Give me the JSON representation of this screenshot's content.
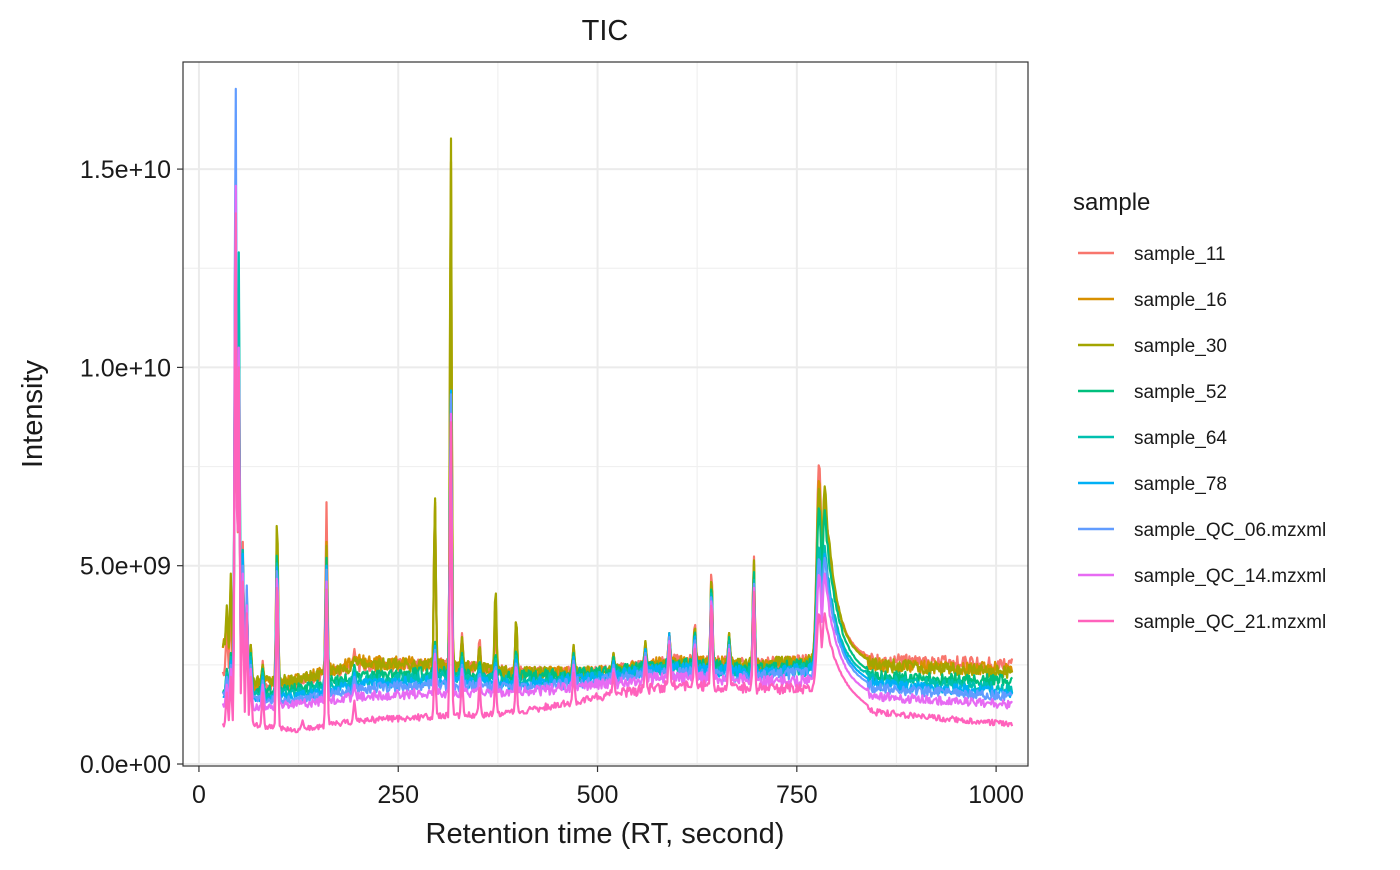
{
  "chart_data": {
    "type": "line",
    "title": "TIC",
    "xlabel": "Retention time (RT, second)",
    "ylabel": "Intensity",
    "xlim": [
      -20,
      1040
    ],
    "ylim": [
      -50000000.0,
      17700000000.0
    ],
    "x_ticks": [
      0,
      250,
      500,
      750,
      1000
    ],
    "x_tick_labels": [
      "0",
      "250",
      "500",
      "750",
      "1000"
    ],
    "y_ticks": [
      0,
      5000000000,
      10000000000,
      15000000000
    ],
    "y_tick_labels": [
      "0.0e+00",
      "5.0e+09",
      "1.0e+10",
      "1.5e+10"
    ],
    "grid": true,
    "legend": {
      "title": "sample",
      "position": "right"
    },
    "x_start": 30,
    "x_end": 1020,
    "peaks_x": [
      35,
      40,
      46,
      50,
      55,
      60,
      65,
      80,
      98,
      130,
      160,
      195,
      296,
      316,
      330,
      352,
      372,
      398,
      470,
      520,
      560,
      590,
      622,
      643,
      665,
      696,
      778,
      785
    ],
    "series": [
      {
        "name": "sample_11",
        "color": "#F8766D",
        "baseline": [
          [
            30,
            2400000000.0
          ],
          [
            60,
            1900000000.0
          ],
          [
            120,
            2000000000.0
          ],
          [
            200,
            2500000000.0
          ],
          [
            300,
            2500000000.0
          ],
          [
            400,
            2300000000.0
          ],
          [
            500,
            2300000000.0
          ],
          [
            600,
            2600000000.0
          ],
          [
            700,
            2500000000.0
          ],
          [
            770,
            2600000000.0
          ],
          [
            800,
            2800000000.0
          ],
          [
            850,
            2600000000.0
          ],
          [
            1020,
            2500000000.0
          ]
        ],
        "peaks": [
          3400000000.0,
          4000000000.0,
          13600000000.0,
          9000000000.0,
          5600000000.0,
          4200000000.0,
          3000000000.0,
          2600000000.0,
          5800000000.0,
          2000000000.0,
          6600000000.0,
          2900000000.0,
          6600000000.0,
          10300000000.0,
          3300000000.0,
          3200000000.0,
          3400000000.0,
          3600000000.0,
          2900000000.0,
          2800000000.0,
          3000000000.0,
          3300000000.0,
          3600000000.0,
          5000000000.0,
          3300000000.0,
          5300000000.0,
          7600000000.0,
          6700000000.0
        ]
      },
      {
        "name": "sample_16",
        "color": "#D89000",
        "baseline": [
          [
            30,
            3000000000.0
          ],
          [
            60,
            2000000000.0
          ],
          [
            120,
            2100000000.0
          ],
          [
            200,
            2600000000.0
          ],
          [
            300,
            2500000000.0
          ],
          [
            400,
            2300000000.0
          ],
          [
            500,
            2300000000.0
          ],
          [
            600,
            2600000000.0
          ],
          [
            700,
            2500000000.0
          ],
          [
            770,
            2600000000.0
          ],
          [
            800,
            2800000000.0
          ],
          [
            850,
            2500000000.0
          ],
          [
            1020,
            2400000000.0
          ]
        ],
        "peaks": [
          3800000000.0,
          4600000000.0,
          13500000000.0,
          9500000000.0,
          5200000000.0,
          4000000000.0,
          3000000000.0,
          2500000000.0,
          6000000000.0,
          2000000000.0,
          5600000000.0,
          2700000000.0,
          6700000000.0,
          15500000000.0,
          3200000000.0,
          3000000000.0,
          4200000000.0,
          3700000000.0,
          3000000000.0,
          2800000000.0,
          3100000000.0,
          3300000000.0,
          3500000000.0,
          4800000000.0,
          3300000000.0,
          5100000000.0,
          7200000000.0,
          6600000000.0
        ]
      },
      {
        "name": "sample_30",
        "color": "#A3A500",
        "baseline": [
          [
            30,
            3000000000.0
          ],
          [
            60,
            2100000000.0
          ],
          [
            120,
            2100000000.0
          ],
          [
            200,
            2500000000.0
          ],
          [
            300,
            2500000000.0
          ],
          [
            400,
            2300000000.0
          ],
          [
            500,
            2300000000.0
          ],
          [
            600,
            2500000000.0
          ],
          [
            700,
            2500000000.0
          ],
          [
            770,
            2600000000.0
          ],
          [
            800,
            2700000000.0
          ],
          [
            850,
            2500000000.0
          ],
          [
            1020,
            2300000000.0
          ]
        ],
        "peaks": [
          4000000000.0,
          4800000000.0,
          13500000000.0,
          9400000000.0,
          5200000000.0,
          4100000000.0,
          3000000000.0,
          2500000000.0,
          6400000000.0,
          2000000000.0,
          5500000000.0,
          2700000000.0,
          6800000000.0,
          16100000000.0,
          3200000000.0,
          3000000000.0,
          4500000000.0,
          3700000000.0,
          3000000000.0,
          2800000000.0,
          3100000000.0,
          3300000000.0,
          3500000000.0,
          4800000000.0,
          3300000000.0,
          5200000000.0,
          7000000000.0,
          7000000000.0
        ]
      },
      {
        "name": "sample_52",
        "color": "#00BF7D",
        "baseline": [
          [
            30,
            1800000000.0
          ],
          [
            60,
            1800000000.0
          ],
          [
            120,
            1900000000.0
          ],
          [
            200,
            2200000000.0
          ],
          [
            300,
            2300000000.0
          ],
          [
            400,
            2200000000.0
          ],
          [
            500,
            2300000000.0
          ],
          [
            600,
            2500000000.0
          ],
          [
            700,
            2400000000.0
          ],
          [
            770,
            2500000000.0
          ],
          [
            800,
            2600000000.0
          ],
          [
            850,
            2200000000.0
          ],
          [
            1020,
            2100000000.0
          ]
        ],
        "peaks": [
          2400000000.0,
          2800000000.0,
          14500000000.0,
          12000000000.0,
          5300000000.0,
          4300000000.0,
          2800000000.0,
          2400000000.0,
          5600000000.0,
          1800000000.0,
          5200000000.0,
          2500000000.0,
          3100000000.0,
          9400000000.0,
          2800000000.0,
          2600000000.0,
          2800000000.0,
          2900000000.0,
          2800000000.0,
          2700000000.0,
          2900000000.0,
          3200000000.0,
          3400000000.0,
          4600000000.0,
          3200000000.0,
          4900000000.0,
          6500000000.0,
          6400000000.0
        ]
      },
      {
        "name": "sample_64",
        "color": "#00C0AF",
        "baseline": [
          [
            30,
            1800000000.0
          ],
          [
            60,
            1700000000.0
          ],
          [
            120,
            1800000000.0
          ],
          [
            200,
            2100000000.0
          ],
          [
            300,
            2200000000.0
          ],
          [
            400,
            2100000000.0
          ],
          [
            500,
            2200000000.0
          ],
          [
            600,
            2400000000.0
          ],
          [
            700,
            2300000000.0
          ],
          [
            770,
            2400000000.0
          ],
          [
            800,
            2500000000.0
          ],
          [
            850,
            2100000000.0
          ],
          [
            1020,
            1900000000.0
          ]
        ],
        "peaks": [
          2300000000.0,
          2700000000.0,
          15000000000.0,
          12900000000.0,
          5400000000.0,
          4400000000.0,
          2700000000.0,
          2300000000.0,
          5400000000.0,
          1700000000.0,
          5000000000.0,
          2400000000.0,
          3000000000.0,
          9300000000.0,
          2700000000.0,
          2500000000.0,
          2700000000.0,
          2800000000.0,
          2700000000.0,
          2600000000.0,
          2900000000.0,
          3200000000.0,
          3300000000.0,
          4500000000.0,
          3100000000.0,
          4700000000.0,
          5500000000.0,
          5500000000.0
        ]
      },
      {
        "name": "sample_78",
        "color": "#00B0F6",
        "baseline": [
          [
            30,
            1700000000.0
          ],
          [
            60,
            1600000000.0
          ],
          [
            120,
            1700000000.0
          ],
          [
            200,
            2000000000.0
          ],
          [
            300,
            2100000000.0
          ],
          [
            400,
            2000000000.0
          ],
          [
            500,
            2200000000.0
          ],
          [
            600,
            2400000000.0
          ],
          [
            700,
            2300000000.0
          ],
          [
            770,
            2400000000.0
          ],
          [
            800,
            2400000000.0
          ],
          [
            850,
            2000000000.0
          ],
          [
            1020,
            1800000000.0
          ]
        ],
        "peaks": [
          2200000000.0,
          2600000000.0,
          16000000000.0,
          10500000000.0,
          5300000000.0,
          4200000000.0,
          2600000000.0,
          2200000000.0,
          5300000000.0,
          1600000000.0,
          5000000000.0,
          2300000000.0,
          3000000000.0,
          9600000000.0,
          2600000000.0,
          2400000000.0,
          2600000000.0,
          2700000000.0,
          2700000000.0,
          2600000000.0,
          2900000000.0,
          3300000000.0,
          3300000000.0,
          4400000000.0,
          3000000000.0,
          4600000000.0,
          5200000000.0,
          5300000000.0
        ]
      },
      {
        "name": "sample_QC_06.mzxml",
        "color": "#619CFF",
        "baseline": [
          [
            30,
            1800000000.0
          ],
          [
            60,
            1600000000.0
          ],
          [
            120,
            1600000000.0
          ],
          [
            200,
            1900000000.0
          ],
          [
            300,
            2000000000.0
          ],
          [
            400,
            1900000000.0
          ],
          [
            500,
            2100000000.0
          ],
          [
            600,
            2300000000.0
          ],
          [
            700,
            2200000000.0
          ],
          [
            770,
            2300000000.0
          ],
          [
            800,
            2300000000.0
          ],
          [
            850,
            1900000000.0
          ],
          [
            1020,
            1700000000.0
          ]
        ],
        "peaks": [
          2200000000.0,
          2500000000.0,
          17400000000.0,
          10000000000.0,
          5000000000.0,
          4500000000.0,
          2500000000.0,
          2100000000.0,
          5200000000.0,
          1500000000.0,
          4900000000.0,
          2200000000.0,
          2900000000.0,
          9500000000.0,
          2500000000.0,
          2300000000.0,
          2500000000.0,
          2600000000.0,
          2600000000.0,
          2500000000.0,
          2800000000.0,
          3200000000.0,
          3200000000.0,
          4400000000.0,
          3000000000.0,
          4600000000.0,
          5200000000.0,
          5200000000.0
        ]
      },
      {
        "name": "sample_QC_14.mzxml",
        "color": "#E76BF3",
        "baseline": [
          [
            30,
            1500000000.0
          ],
          [
            60,
            1400000000.0
          ],
          [
            120,
            1500000000.0
          ],
          [
            200,
            1700000000.0
          ],
          [
            300,
            1800000000.0
          ],
          [
            400,
            1800000000.0
          ],
          [
            500,
            2000000000.0
          ],
          [
            600,
            2200000000.0
          ],
          [
            700,
            2100000000.0
          ],
          [
            770,
            2100000000.0
          ],
          [
            800,
            2100000000.0
          ],
          [
            850,
            1700000000.0
          ],
          [
            1020,
            1500000000.0
          ]
        ],
        "peaks": [
          2000000000.0,
          2400000000.0,
          14900000000.0,
          10500000000.0,
          4800000000.0,
          4000000000.0,
          2400000000.0,
          2000000000.0,
          5000000000.0,
          1400000000.0,
          4600000000.0,
          2000000000.0,
          2800000000.0,
          9000000000.0,
          2400000000.0,
          2200000000.0,
          2400000000.0,
          2500000000.0,
          2500000000.0,
          2400000000.0,
          2700000000.0,
          3100000000.0,
          3100000000.0,
          4300000000.0,
          2900000000.0,
          4500000000.0,
          4800000000.0,
          4800000000.0
        ]
      },
      {
        "name": "sample_QC_21.mzxml",
        "color": "#FF62BC",
        "baseline": [
          [
            30,
            1000000000.0
          ],
          [
            60,
            1000000000.0
          ],
          [
            120,
            850000000.0
          ],
          [
            200,
            1100000000.0
          ],
          [
            300,
            1200000000.0
          ],
          [
            400,
            1300000000.0
          ],
          [
            500,
            1700000000.0
          ],
          [
            600,
            2000000000.0
          ],
          [
            700,
            1900000000.0
          ],
          [
            770,
            1900000000.0
          ],
          [
            800,
            1900000000.0
          ],
          [
            850,
            1300000000.0
          ],
          [
            1020,
            1000000000.0
          ]
        ],
        "peaks": [
          1800000000.0,
          2200000000.0,
          14200000000.0,
          10000000000.0,
          4600000000.0,
          3800000000.0,
          2200000000.0,
          1800000000.0,
          4800000000.0,
          1100000000.0,
          4400000000.0,
          1600000000.0,
          2600000000.0,
          8800000000.0,
          2200000000.0,
          2000000000.0,
          2200000000.0,
          2300000000.0,
          2300000000.0,
          2300000000.0,
          2600000000.0,
          3000000000.0,
          3000000000.0,
          4200000000.0,
          2800000000.0,
          4400000000.0,
          3800000000.0,
          3800000000.0
        ]
      }
    ]
  }
}
